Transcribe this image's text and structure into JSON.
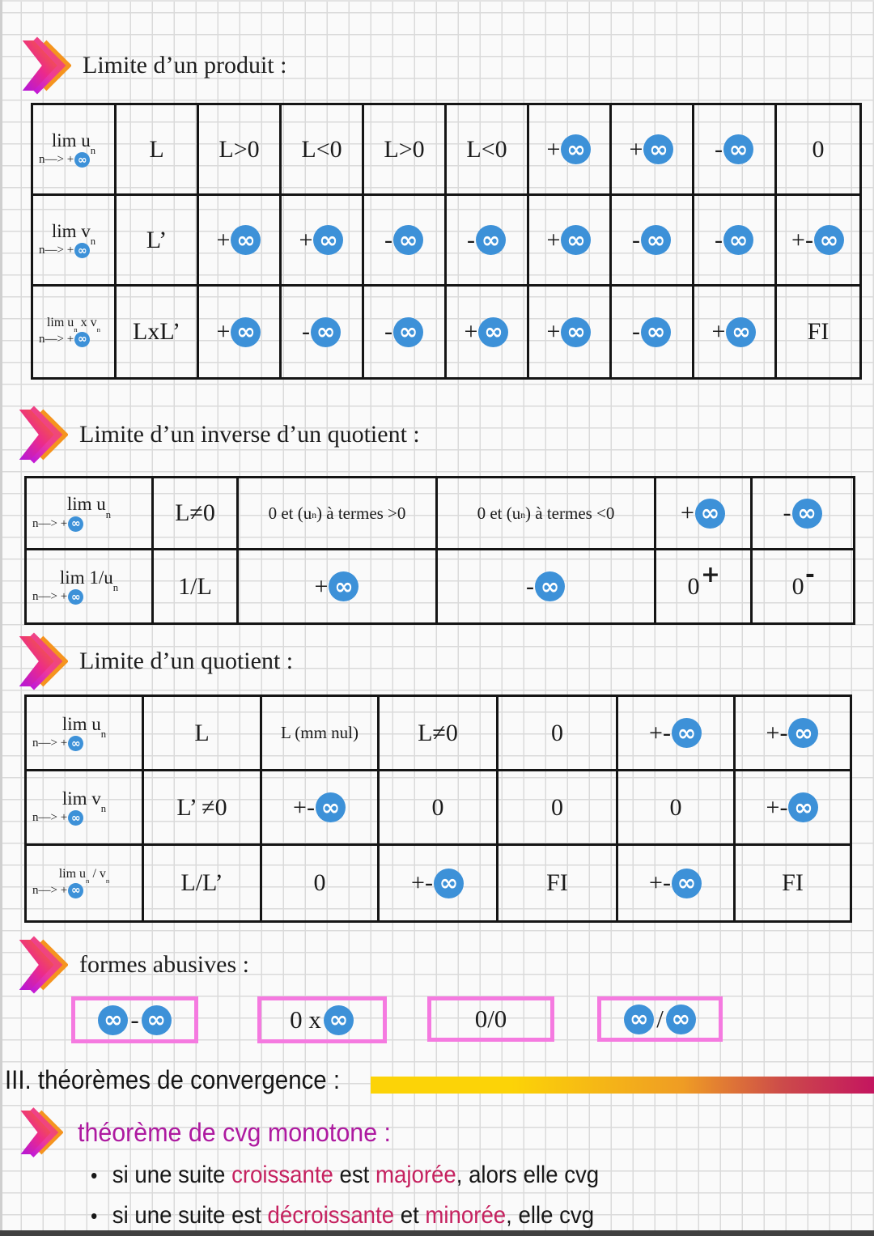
{
  "colors": {
    "infinity_blue": "#3d91d8",
    "box_pink": "#f57ae0",
    "heading_magenta": "#ae1aa0",
    "highlight_crimson": "#c5215f",
    "bar_gold": "#fcd307",
    "bar_crimson": "#c4155f",
    "ink": "#1b1b1b",
    "chevron_orange": "#f5941f"
  },
  "produit": {
    "title": "Limite d’un produit :",
    "rows": [
      {
        "top": "lim u{n}",
        "bot": "n—> +@",
        "cells": [
          "L",
          "L>0",
          "L<0",
          "L>0",
          "L<0",
          "+@",
          "+@",
          "-@",
          "0"
        ]
      },
      {
        "top": "lim v{n}",
        "bot": "n—> +@",
        "cells": [
          "L’",
          "+@",
          "+@",
          "-@",
          "-@",
          "+@",
          "-@",
          "-@",
          "+-@"
        ]
      },
      {
        "top": "lim u{n} x v{n}",
        "bot": "n—> +@",
        "cells": [
          "LxL’",
          "+@",
          "-@",
          "-@",
          "+@",
          "+@",
          "-@",
          "+@",
          "FI"
        ]
      }
    ]
  },
  "inverse": {
    "title": "Limite d’un inverse d’un quotient :",
    "rows": [
      {
        "top": "lim u{n}",
        "bot": "n—> +@",
        "cells": [
          "L≠0",
          "0 et (u{n}) à termes >0",
          "0 et (u{n}) à termes <0",
          "+@",
          "-@"
        ]
      },
      {
        "top": "lim 1/u{n}",
        "bot": "n—> +@",
        "cells": [
          "1/L",
          "+@",
          "-@",
          "0[+]",
          "0[-]"
        ]
      }
    ]
  },
  "quotient": {
    "title": "Limite d’un quotient :",
    "rows": [
      {
        "top": "lim u{n}",
        "bot": "n—> +@",
        "cells": [
          "L",
          "L (mm nul)",
          "L≠0",
          "0",
          "+-@",
          "+-@"
        ]
      },
      {
        "top": "lim v{n}",
        "bot": "n—> +@",
        "cells": [
          "L’ ≠0",
          "+-@",
          "0",
          "0",
          "0",
          "+-@"
        ]
      },
      {
        "top": "lim u{n} / v{n}",
        "bot": "n—> +@",
        "cells": [
          "L/L’",
          "0",
          "+-@",
          "FI",
          "+-@",
          "FI"
        ]
      }
    ]
  },
  "abusives": {
    "title": "formes abusives :",
    "boxes": [
      "@ - @",
      "0 x @",
      "0/0",
      "@/@"
    ]
  },
  "convergence": {
    "heading": "III. théorèmes de convergence :",
    "sub": {
      "title": "théorème de cvg monotone :",
      "bullets": [
        [
          {
            "t": "si une suite "
          },
          {
            "t": "croissante",
            "hl": true
          },
          {
            "t": " est "
          },
          {
            "t": "majorée",
            "hl": true
          },
          {
            "t": ", alors elle cvg"
          }
        ],
        [
          {
            "t": "si une suite est "
          },
          {
            "t": "décroissante",
            "hl": true
          },
          {
            "t": " et "
          },
          {
            "t": "minorée",
            "hl": true
          },
          {
            "t": ", elle cvg"
          }
        ]
      ]
    }
  }
}
